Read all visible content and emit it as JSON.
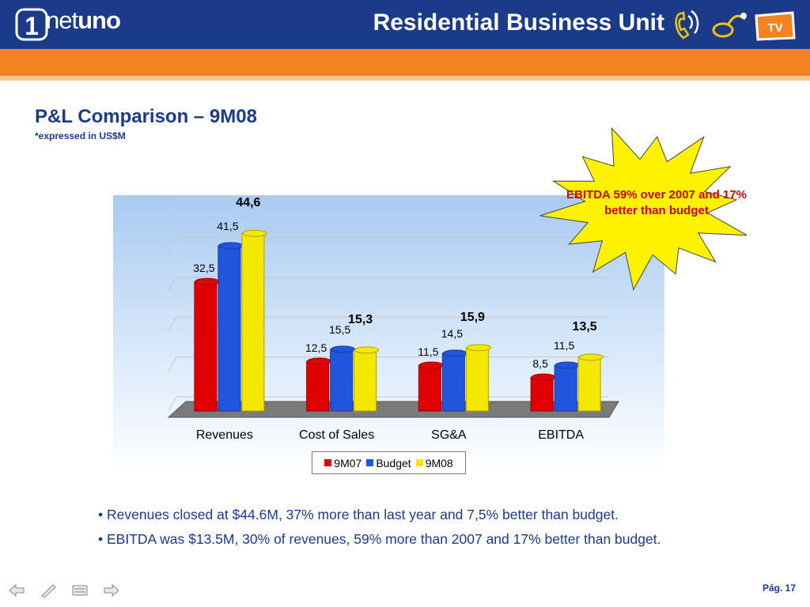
{
  "header": {
    "title": "Residential Business Unit",
    "logo_number": "1",
    "logo_text_light": "net",
    "logo_text_bold": "uno",
    "icons": [
      "phone-icon",
      "internet-icon",
      "tv-icon"
    ],
    "tv_label": "TV"
  },
  "slide": {
    "title": "P&L Comparison – 9M08",
    "subtitle": "*expressed in US$M"
  },
  "callout": {
    "text": "EBITDA 59% over 2007 and 17% better than budget"
  },
  "legend": {
    "items": [
      "9M07",
      "Budget",
      "9M08"
    ]
  },
  "bullets": [
    "Revenues closed at $44.6M, 37% more than last year and 7,5% better than budget.",
    "EBITDA was $13.5M, 30% of revenues, 59% more than 2007 and 17% better than budget."
  ],
  "footer": {
    "page": "Pág. 17",
    "nav_icons": [
      "prev-arrow-icon",
      "pen-icon",
      "menu-icon",
      "next-arrow-icon"
    ]
  },
  "colors": {
    "header": "#1b3a8a",
    "orange": "#f58220",
    "red": "#e00000",
    "blue": "#2255dd",
    "yellow": "#f5e800"
  },
  "chart_data": {
    "type": "bar",
    "categories": [
      "Revenues",
      "Cost of Sales",
      "SG&A",
      "EBITDA"
    ],
    "series": [
      {
        "name": "9M07",
        "values": [
          32.5,
          12.5,
          11.5,
          8.5
        ],
        "labels": [
          "32,5",
          "12,5",
          "11,5",
          "8,5"
        ],
        "color": "#e00000"
      },
      {
        "name": "Budget",
        "values": [
          41.5,
          15.5,
          14.5,
          11.5
        ],
        "labels": [
          "41,5",
          "15,5",
          "14,5",
          "11,5"
        ],
        "color": "#2255dd"
      },
      {
        "name": "9M08",
        "values": [
          44.6,
          15.3,
          15.9,
          13.5
        ],
        "labels": [
          "44,6",
          "15,3",
          "15,9",
          "13,5"
        ],
        "color": "#f5e800"
      }
    ],
    "ylim": [
      0,
      50
    ],
    "grid": true,
    "legend_position": "bottom"
  }
}
